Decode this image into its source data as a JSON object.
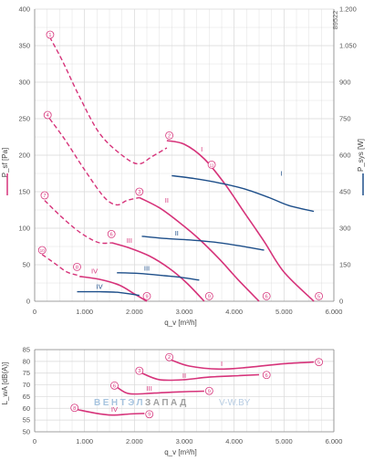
{
  "chart_data": [
    {
      "type": "line",
      "panel": "pressure-power",
      "title": "",
      "id_label": "89522",
      "xlabel": "q_v [m³/h]",
      "ylabel": "P_sf [Pa]",
      "y2label": "P_sys [W]",
      "xlim": [
        0,
        6000
      ],
      "ylim": [
        0,
        400
      ],
      "y2lim": [
        0,
        1200
      ],
      "x_ticks": [
        0,
        1000,
        2000,
        3000,
        4000,
        5000,
        6000
      ],
      "x_tick_labels": [
        "0",
        "1.000",
        "2.000",
        "3.000",
        "4.000",
        "5.000",
        "6.000"
      ],
      "y_ticks": [
        0,
        50,
        100,
        150,
        200,
        250,
        300,
        350,
        400
      ],
      "y_tick_labels": [
        "0",
        "50",
        "100",
        "150",
        "200",
        "250",
        "300",
        "350",
        "400"
      ],
      "y2_ticks": [
        0,
        150,
        300,
        450,
        600,
        750,
        900,
        1050,
        1200
      ],
      "y2_tick_labels": [
        "0",
        "150",
        "300",
        "450",
        "600",
        "750",
        "900",
        "1.050",
        "1.200"
      ],
      "grid": true,
      "colors": {
        "pressure": "#d6337a",
        "power": "#1e4f8a",
        "grid": "#d8d8d8",
        "axis": "#888888"
      },
      "pressure_series": [
        {
          "name": "I",
          "dashed_points": [
            [
              300,
              362
            ],
            [
              550,
              330
            ],
            [
              900,
              280
            ],
            [
              1300,
              230
            ],
            [
              1750,
              200
            ],
            [
              2080,
              188
            ],
            [
              2350,
              198
            ],
            [
              2650,
              210
            ]
          ],
          "solid_points": [
            [
              2650,
              220
            ],
            [
              3000,
              215
            ],
            [
              3400,
              195
            ],
            [
              3800,
              162
            ],
            [
              4200,
              122
            ],
            [
              4600,
              82
            ],
            [
              5000,
              40
            ],
            [
              5600,
              0
            ]
          ]
        },
        {
          "name": "II",
          "dashed_points": [
            [
              300,
              250
            ],
            [
              600,
              222
            ],
            [
              1000,
              180
            ],
            [
              1400,
              142
            ],
            [
              1650,
              132
            ],
            [
              1850,
              138
            ],
            [
              2100,
              142
            ]
          ],
          "solid_points": [
            [
              2100,
              142
            ],
            [
              2500,
              128
            ],
            [
              2900,
              108
            ],
            [
              3300,
              85
            ],
            [
              3700,
              58
            ],
            [
              4100,
              28
            ],
            [
              4500,
              0
            ]
          ]
        },
        {
          "name": "III",
          "dashed_points": [
            [
              200,
              138
            ],
            [
              500,
              118
            ],
            [
              800,
              100
            ],
            [
              1050,
              88
            ],
            [
              1300,
              80
            ],
            [
              1550,
              80
            ]
          ],
          "solid_points": [
            [
              1550,
              80
            ],
            [
              1900,
              73
            ],
            [
              2300,
              62
            ],
            [
              2700,
              45
            ],
            [
              3050,
              25
            ],
            [
              3400,
              0
            ]
          ]
        },
        {
          "name": "IV",
          "dashed_points": [
            [
              150,
              64
            ],
            [
              400,
              52
            ],
            [
              650,
              40
            ],
            [
              900,
              35
            ]
          ],
          "solid_points": [
            [
              900,
              34
            ],
            [
              1300,
              30
            ],
            [
              1700,
              22
            ],
            [
              2000,
              10
            ],
            [
              2250,
              0
            ]
          ]
        }
      ],
      "power_series": [
        {
          "name": "I",
          "points": [
            [
              2750,
              516
            ],
            [
              3200,
              504
            ],
            [
              3700,
              486
            ],
            [
              4200,
              462
            ],
            [
              4700,
              426
            ],
            [
              5100,
              393
            ],
            [
              5600,
              369
            ]
          ]
        },
        {
          "name": "II",
          "points": [
            [
              2150,
              267
            ],
            [
              2600,
              258
            ],
            [
              3100,
              252
            ],
            [
              3600,
              243
            ],
            [
              4100,
              228
            ],
            [
              4600,
              210
            ]
          ]
        },
        {
          "name": "III",
          "points": [
            [
              1650,
              117
            ],
            [
              2100,
              114
            ],
            [
              2600,
              105
            ],
            [
              2900,
              99
            ],
            [
              3300,
              87
            ]
          ]
        },
        {
          "name": "IV",
          "points": [
            [
              850,
              39
            ],
            [
              1300,
              39
            ],
            [
              1700,
              36
            ],
            [
              2100,
              24
            ]
          ]
        }
      ],
      "markers": [
        {
          "label": "1",
          "x": 310,
          "y": 360
        },
        {
          "label": "2",
          "x": 2700,
          "y": 222
        },
        {
          "label": "11",
          "x": 3550,
          "y": 182
        },
        {
          "label": "4",
          "x": 260,
          "y": 250
        },
        {
          "label": "3",
          "x": 2100,
          "y": 145
        },
        {
          "label": "7",
          "x": 200,
          "y": 140
        },
        {
          "label": "6",
          "x": 1540,
          "y": 87
        },
        {
          "label": "10",
          "x": 150,
          "y": 65
        },
        {
          "label": "8",
          "x": 850,
          "y": 42
        },
        {
          "label": "9",
          "x": 2250,
          "y": 2
        },
        {
          "label": "9",
          "x": 3500,
          "y": 2
        },
        {
          "label": "6",
          "x": 4650,
          "y": 2
        },
        {
          "label": "5",
          "x": 5700,
          "y": 2
        }
      ],
      "series_labels": [
        {
          "text": "I",
          "x": 3350,
          "y": 205,
          "color": "#d6337a"
        },
        {
          "text": "II",
          "x": 2650,
          "y": 135,
          "color": "#d6337a"
        },
        {
          "text": "III",
          "x": 1900,
          "y": 80,
          "color": "#d6337a"
        },
        {
          "text": "IV",
          "x": 1200,
          "y": 38,
          "color": "#d6337a"
        },
        {
          "text": "I",
          "x": 4950,
          "y": 172,
          "color": "#1e4f8a"
        },
        {
          "text": "II",
          "x": 2850,
          "y": 90,
          "color": "#1e4f8a"
        },
        {
          "text": "III",
          "x": 2250,
          "y": 42,
          "color": "#1e4f8a"
        },
        {
          "text": "IV",
          "x": 1300,
          "y": 17,
          "color": "#1e4f8a"
        }
      ]
    },
    {
      "type": "line",
      "panel": "sound-level",
      "title": "",
      "xlabel": "q_v [m³/h]",
      "ylabel": "L_wA [dB(A)]",
      "xlim": [
        0,
        6000
      ],
      "ylim": [
        50,
        85
      ],
      "x_ticks": [
        0,
        1000,
        2000,
        3000,
        4000,
        5000,
        6000
      ],
      "x_tick_labels": [
        "0",
        "1.000",
        "2.000",
        "3.000",
        "4.000",
        "5.000",
        "6.000"
      ],
      "y_ticks": [
        50,
        55,
        60,
        65,
        70,
        75,
        80,
        85
      ],
      "y_tick_labels": [
        "50",
        "55",
        "60",
        "65",
        "70",
        "75",
        "80",
        "85"
      ],
      "grid": true,
      "series": [
        {
          "name": "I",
          "points": [
            [
              2750,
              80.5
            ],
            [
              3100,
              78
            ],
            [
              3700,
              76.7
            ],
            [
              4300,
              77.5
            ],
            [
              5000,
              79
            ],
            [
              5600,
              79.7
            ]
          ]
        },
        {
          "name": "II",
          "points": [
            [
              2150,
              75
            ],
            [
              2500,
              72.2
            ],
            [
              3000,
              72.2
            ],
            [
              3500,
              73.3
            ],
            [
              4100,
              73.9
            ],
            [
              4500,
              74.3
            ]
          ]
        },
        {
          "name": "III",
          "points": [
            [
              1650,
              69
            ],
            [
              1900,
              66.2
            ],
            [
              2400,
              66.5
            ],
            [
              2900,
              67
            ],
            [
              3400,
              67.3
            ]
          ]
        },
        {
          "name": "IV",
          "points": [
            [
              850,
              59.5
            ],
            [
              1200,
              58
            ],
            [
              1550,
              57.1
            ],
            [
              1900,
              57.6
            ],
            [
              2200,
              57.8
            ]
          ]
        }
      ],
      "markers": [
        {
          "label": "2",
          "x": 2700,
          "y": 81.8
        },
        {
          "label": "5",
          "x": 5700,
          "y": 79.7
        },
        {
          "label": "3",
          "x": 2100,
          "y": 76.0
        },
        {
          "label": "6",
          "x": 4650,
          "y": 74.2
        },
        {
          "label": "6",
          "x": 1600,
          "y": 69.7
        },
        {
          "label": "9",
          "x": 3500,
          "y": 67.4
        },
        {
          "label": "8",
          "x": 800,
          "y": 60.2
        },
        {
          "label": "9",
          "x": 2300,
          "y": 57.5
        }
      ],
      "series_labels": [
        {
          "text": "I",
          "x": 3750,
          "y": 78
        },
        {
          "text": "II",
          "x": 3000,
          "y": 73
        },
        {
          "text": "III",
          "x": 2300,
          "y": 67.5
        },
        {
          "text": "IV",
          "x": 1600,
          "y": 58.5
        }
      ]
    }
  ],
  "watermark": {
    "part1": "ВЕНТЭЛ",
    "part2": "ЗАПАД",
    "part3": "V-W.BY"
  }
}
